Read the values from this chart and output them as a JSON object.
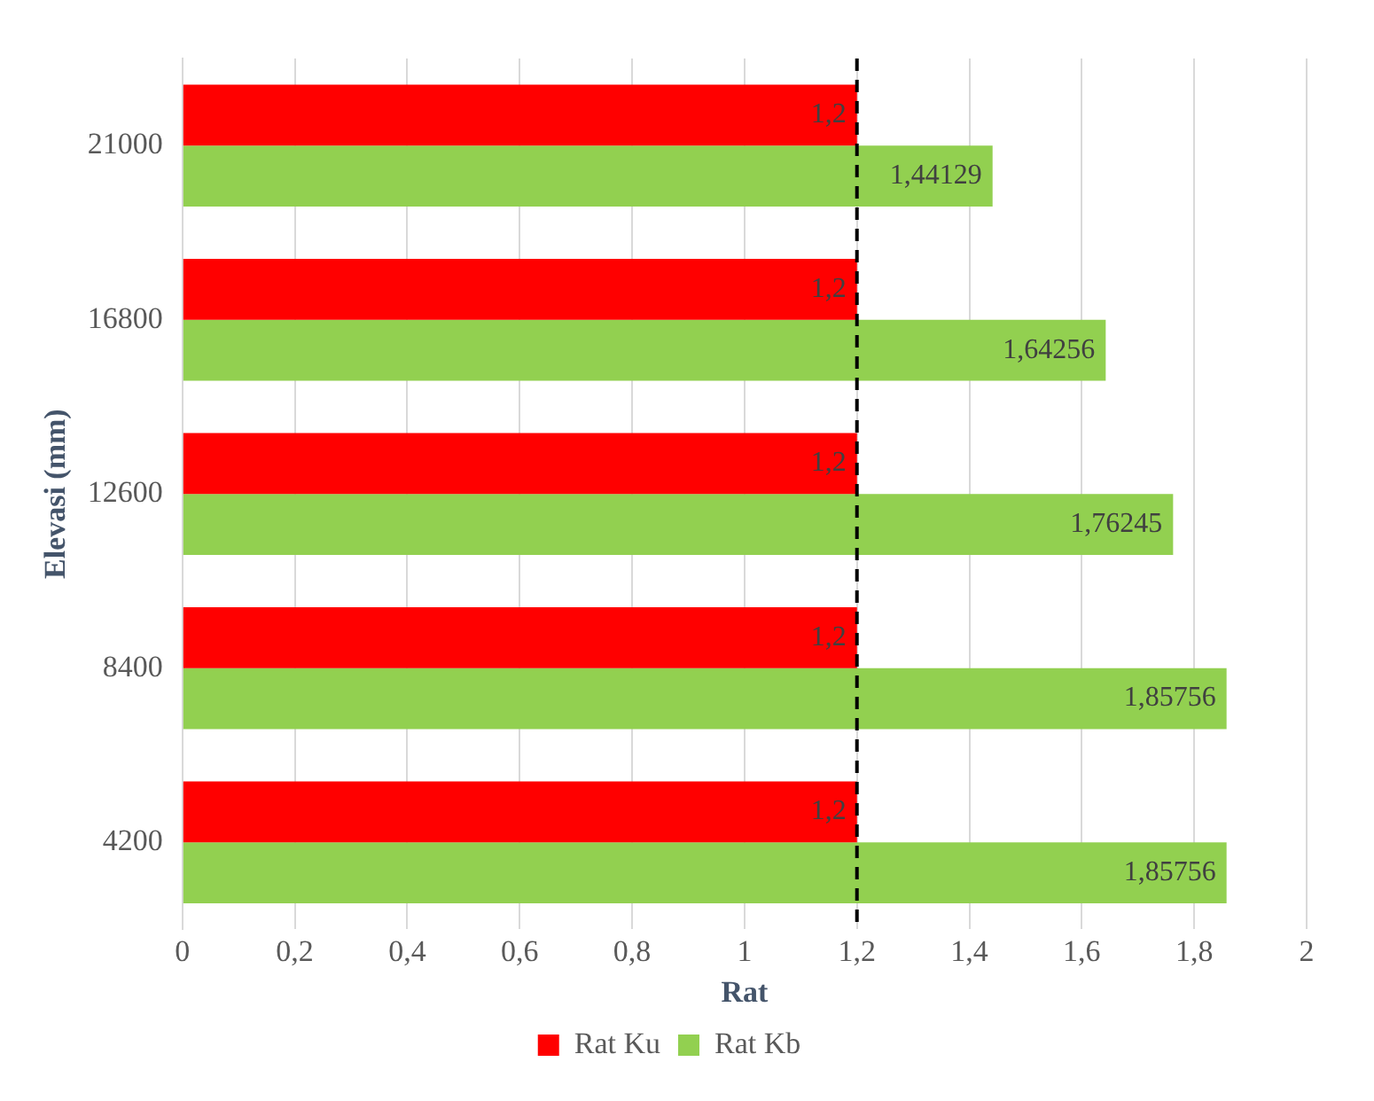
{
  "chart_data": {
    "type": "bar",
    "orientation": "horizontal",
    "xlabel": "Rat",
    "ylabel": "Elevasi (mm)",
    "categories": [
      "21000",
      "16800",
      "12600",
      "8400",
      "4200"
    ],
    "series": [
      {
        "name": "Rat Ku",
        "color": "#ff0000",
        "values": [
          1.2,
          1.2,
          1.2,
          1.2,
          1.2
        ],
        "value_labels": [
          "1,2",
          "1,2",
          "1,2",
          "1,2",
          "1,2"
        ]
      },
      {
        "name": "Rat Kb",
        "color": "#92d050",
        "values": [
          1.44129,
          1.64256,
          1.76245,
          1.85756,
          1.85756
        ],
        "value_labels": [
          "1,44129",
          "1,64256",
          "1,76245",
          "1,85756",
          "1,85756"
        ]
      }
    ],
    "xlim": [
      0,
      2
    ],
    "xticks": [
      0,
      {
        "value": 0.2,
        "label": "0,2"
      },
      {
        "value": 0.4,
        "label": "0,4"
      },
      {
        "value": 0.6,
        "label": "0,6"
      },
      {
        "value": 0.8,
        "label": "0,8"
      },
      1,
      {
        "value": 1.2,
        "label": "1,2"
      },
      {
        "value": 1.4,
        "label": "1,4"
      },
      {
        "value": 1.6,
        "label": "1,6"
      },
      {
        "value": 1.8,
        "label": "1,8"
      },
      2
    ],
    "ref_lines": [
      {
        "axis": "x",
        "value": 1.2,
        "color": "#000000",
        "line_style": "dashed"
      }
    ],
    "grid": "x",
    "legend": "bottom"
  }
}
